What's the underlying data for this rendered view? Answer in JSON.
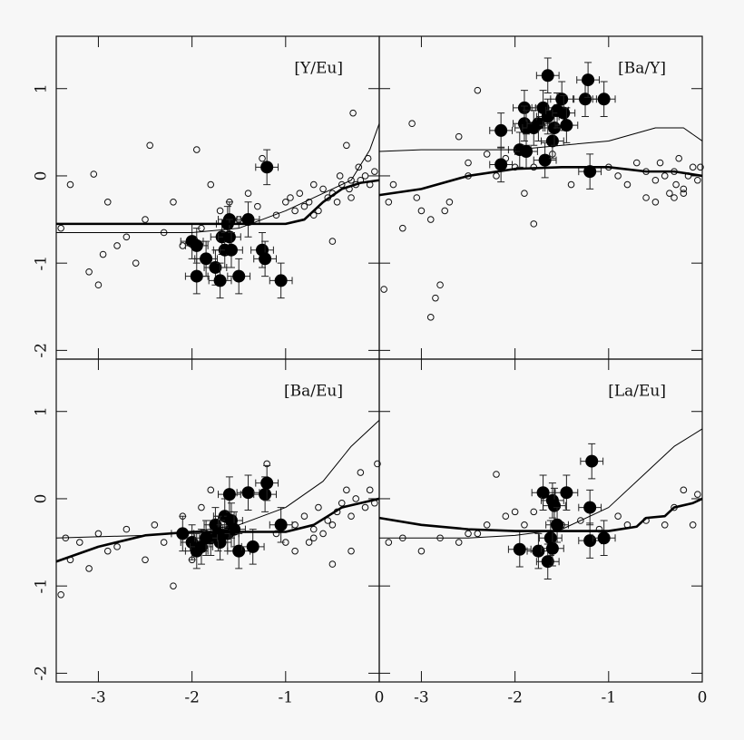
{
  "chart_data": [
    {
      "type": "scatter",
      "label": "[Y/Eu]",
      "xlim": [
        -3.45,
        0
      ],
      "ylim": [
        -2.1,
        1.6
      ],
      "yticks": [
        -2,
        -1,
        0,
        1
      ],
      "series": [
        {
          "kind": "open",
          "color": "#111",
          "x": [
            -3.4,
            -3.3,
            -3.1,
            -3.05,
            -3.0,
            -2.95,
            -2.9,
            -2.8,
            -2.7,
            -2.6,
            -2.5,
            -2.45,
            -2.3,
            -2.2,
            -2.1,
            -1.95,
            -1.9,
            -1.8,
            -1.7,
            -1.6,
            -1.5,
            -1.4,
            -1.3,
            -1.25,
            -1.1,
            -1.0,
            -0.95,
            -0.9,
            -0.85,
            -0.8,
            -0.75,
            -0.7,
            -0.65,
            -0.6,
            -0.55,
            -0.5,
            -0.45,
            -0.42,
            -0.4,
            -0.35,
            -0.32,
            -0.3,
            -0.28,
            -0.25,
            -0.22,
            -0.2,
            -0.15,
            -0.12,
            -0.1,
            -0.05,
            -0.3,
            -0.5,
            -0.7
          ],
          "values": [
            -0.6,
            -0.1,
            -1.1,
            0.02,
            -1.25,
            -0.9,
            -0.3,
            -0.8,
            -0.7,
            -1.0,
            -0.5,
            0.35,
            -0.65,
            -0.3,
            -0.8,
            0.3,
            -0.6,
            -0.1,
            -0.4,
            -0.3,
            -0.5,
            -0.2,
            -0.35,
            0.2,
            -0.45,
            -0.3,
            -0.25,
            -0.4,
            -0.2,
            -0.35,
            -0.3,
            -0.1,
            -0.4,
            -0.15,
            -0.25,
            -0.2,
            -0.3,
            0.0,
            -0.1,
            0.35,
            -0.15,
            -0.05,
            0.72,
            -0.1,
            0.1,
            -0.05,
            0.0,
            0.2,
            -0.1,
            0.05,
            -0.25,
            -0.75,
            -0.45
          ]
        },
        {
          "kind": "filled",
          "color": "#000",
          "xerr": 0.12,
          "yerr": 0.2,
          "x": [
            -2.0,
            -1.95,
            -1.95,
            -1.85,
            -1.75,
            -1.7,
            -1.68,
            -1.65,
            -1.62,
            -1.6,
            -1.6,
            -1.58,
            -1.5,
            -1.4,
            -1.25,
            -1.22,
            -1.2,
            -1.05
          ],
          "values": [
            -0.75,
            -0.8,
            -1.15,
            -0.95,
            -1.05,
            -1.2,
            -0.7,
            -0.85,
            -0.55,
            -0.5,
            -0.7,
            -0.85,
            -1.15,
            -0.5,
            -0.85,
            -0.95,
            0.1,
            -1.2
          ]
        },
        {
          "kind": "line",
          "color": "#000",
          "width": 2.6,
          "x": [
            -3.45,
            -1.8,
            -1.0,
            -0.8,
            -0.6,
            -0.4,
            -0.2,
            0
          ],
          "values": [
            -0.55,
            -0.55,
            -0.55,
            -0.5,
            -0.3,
            -0.15,
            -0.08,
            -0.05
          ]
        },
        {
          "kind": "line",
          "color": "#000",
          "width": 1,
          "x": [
            -3.45,
            -2.0,
            -1.5,
            -1.0,
            -0.6,
            -0.3,
            -0.1,
            0
          ],
          "values": [
            -0.65,
            -0.65,
            -0.6,
            -0.4,
            -0.2,
            -0.05,
            0.3,
            0.6
          ]
        }
      ]
    },
    {
      "type": "scatter",
      "label": "[Ba/Y]",
      "xlim": [
        -3.45,
        0
      ],
      "ylim": [
        -2.1,
        1.6
      ],
      "series": [
        {
          "kind": "open",
          "color": "#111",
          "x": [
            -3.4,
            -3.35,
            -3.3,
            -3.2,
            -3.1,
            -3.0,
            -2.9,
            -2.8,
            -2.7,
            -2.6,
            -2.5,
            -2.4,
            -2.3,
            -2.2,
            -2.1,
            -2.0,
            -1.9,
            -1.8,
            -1.6,
            -1.4,
            -1.2,
            -1.0,
            -0.9,
            -0.8,
            -0.7,
            -0.6,
            -0.5,
            -0.45,
            -0.4,
            -0.35,
            -0.3,
            -0.28,
            -0.25,
            -0.2,
            -0.15,
            -0.1,
            -0.05,
            -0.02,
            -0.3,
            -0.2,
            -0.5,
            -0.6,
            -2.9,
            -2.85,
            -2.75,
            -3.05,
            -2.5,
            -1.8
          ],
          "values": [
            -1.3,
            -0.3,
            -0.1,
            -0.6,
            0.6,
            -0.4,
            -0.5,
            -1.25,
            -0.3,
            0.45,
            0.0,
            0.98,
            0.25,
            0.0,
            0.2,
            0.1,
            -0.2,
            -0.55,
            0.25,
            -0.1,
            0.05,
            0.1,
            0.0,
            -0.1,
            0.15,
            0.05,
            -0.05,
            0.15,
            0.0,
            -0.2,
            0.05,
            -0.1,
            0.2,
            -0.15,
            0.0,
            0.1,
            -0.05,
            0.1,
            -0.25,
            -0.2,
            -0.3,
            -0.25,
            -1.62,
            -1.4,
            -0.4,
            -0.25,
            0.15,
            0.1
          ]
        },
        {
          "kind": "filled",
          "color": "#000",
          "xerr": 0.12,
          "yerr": 0.2,
          "x": [
            -2.15,
            -2.15,
            -1.95,
            -1.9,
            -1.9,
            -1.88,
            -1.88,
            -1.8,
            -1.75,
            -1.7,
            -1.68,
            -1.65,
            -1.65,
            -1.6,
            -1.58,
            -1.55,
            -1.5,
            -1.48,
            -1.45,
            -1.25,
            -1.22,
            -1.2,
            -1.05
          ],
          "values": [
            0.52,
            0.13,
            0.3,
            0.78,
            0.6,
            0.55,
            0.28,
            0.55,
            0.6,
            0.78,
            0.18,
            1.15,
            0.68,
            0.4,
            0.55,
            0.75,
            0.88,
            0.72,
            0.58,
            0.88,
            1.1,
            0.05,
            0.88
          ]
        },
        {
          "kind": "line",
          "color": "#000",
          "width": 2.6,
          "x": [
            -3.45,
            -3.0,
            -2.5,
            -2.0,
            -1.5,
            -1.0,
            -0.6,
            -0.3,
            0
          ],
          "values": [
            -0.22,
            -0.15,
            0.0,
            0.08,
            0.1,
            0.1,
            0.05,
            0.05,
            0.0
          ]
        },
        {
          "kind": "line",
          "color": "#000",
          "width": 1,
          "x": [
            -3.45,
            -3.0,
            -2.0,
            -1.5,
            -1.0,
            -0.5,
            -0.2,
            0
          ],
          "values": [
            0.28,
            0.3,
            0.3,
            0.35,
            0.4,
            0.55,
            0.55,
            0.4
          ]
        }
      ]
    },
    {
      "type": "scatter",
      "label": "[Ba/Eu]",
      "xlim": [
        -3.45,
        0
      ],
      "ylim": [
        -2.1,
        1.6
      ],
      "xticks": [
        -3,
        -2,
        -1,
        0
      ],
      "yticks": [
        -2,
        -1,
        0,
        1
      ],
      "series": [
        {
          "kind": "open",
          "color": "#111",
          "x": [
            -3.4,
            -3.35,
            -3.3,
            -3.2,
            -3.1,
            -3.0,
            -2.9,
            -2.8,
            -2.7,
            -2.5,
            -2.4,
            -2.3,
            -2.2,
            -2.1,
            -2.0,
            -1.9,
            -1.8,
            -1.2,
            -1.1,
            -1.0,
            -0.9,
            -0.8,
            -0.75,
            -0.7,
            -0.65,
            -0.6,
            -0.55,
            -0.5,
            -0.45,
            -0.4,
            -0.35,
            -0.3,
            -0.25,
            -0.2,
            -0.15,
            -0.1,
            -0.05,
            -0.02,
            -0.3,
            -0.5,
            -0.7,
            -0.9
          ],
          "values": [
            -1.1,
            -0.45,
            -0.7,
            -0.5,
            -0.8,
            -0.4,
            -0.6,
            -0.55,
            -0.35,
            -0.7,
            -0.3,
            -0.5,
            -1.0,
            -0.2,
            -0.7,
            -0.1,
            0.1,
            0.4,
            -0.4,
            -0.5,
            -0.3,
            -0.2,
            -0.5,
            -0.35,
            -0.1,
            -0.4,
            -0.25,
            -0.3,
            -0.15,
            -0.05,
            0.1,
            -0.2,
            0.0,
            0.3,
            -0.1,
            0.1,
            -0.05,
            0.4,
            -0.6,
            -0.75,
            -0.45,
            -0.6
          ]
        },
        {
          "kind": "filled",
          "color": "#000",
          "xerr": 0.12,
          "yerr": 0.2,
          "x": [
            -2.1,
            -2.0,
            -1.95,
            -1.9,
            -1.8,
            -1.75,
            -1.7,
            -1.65,
            -1.62,
            -1.6,
            -1.58,
            -1.55,
            -1.5,
            -1.4,
            -1.35,
            -1.22,
            -1.2,
            -1.05,
            -1.72,
            -1.85
          ],
          "values": [
            -0.4,
            -0.5,
            -0.6,
            -0.55,
            -0.45,
            -0.3,
            -0.5,
            -0.2,
            -0.4,
            0.05,
            -0.25,
            -0.35,
            -0.6,
            0.07,
            -0.55,
            0.05,
            0.18,
            -0.3,
            -0.4,
            -0.45
          ]
        },
        {
          "kind": "line",
          "color": "#000",
          "width": 2.6,
          "x": [
            -3.45,
            -3.0,
            -2.5,
            -2.0,
            -1.5,
            -1.0,
            -0.7,
            -0.4,
            -0.2,
            0
          ],
          "values": [
            -0.72,
            -0.55,
            -0.42,
            -0.38,
            -0.38,
            -0.38,
            -0.3,
            -0.1,
            -0.05,
            0.0
          ]
        },
        {
          "kind": "line",
          "color": "#000",
          "width": 1,
          "x": [
            -3.45,
            -2.5,
            -2.0,
            -1.5,
            -1.0,
            -0.6,
            -0.3,
            0
          ],
          "values": [
            -0.45,
            -0.42,
            -0.38,
            -0.3,
            -0.1,
            0.2,
            0.6,
            0.9
          ]
        }
      ]
    },
    {
      "type": "scatter",
      "label": "[La/Eu]",
      "xlim": [
        -3.45,
        0
      ],
      "ylim": [
        -2.1,
        1.6
      ],
      "xticks": [
        -3,
        -2,
        -1,
        0
      ],
      "series": [
        {
          "kind": "open",
          "color": "#111",
          "x": [
            -3.35,
            -3.2,
            -3.0,
            -2.8,
            -2.6,
            -2.4,
            -2.2,
            -2.1,
            -2.0,
            -1.9,
            -1.8,
            -1.5,
            -1.3,
            -1.1,
            -0.9,
            -0.8,
            -0.6,
            -0.4,
            -0.3,
            -0.2,
            -0.1,
            -0.05,
            -2.5,
            -2.3
          ],
          "values": [
            -0.5,
            -0.45,
            -0.6,
            -0.45,
            -0.5,
            -0.4,
            0.28,
            -0.2,
            -0.15,
            -0.3,
            -0.15,
            -0.3,
            -0.25,
            -0.35,
            -0.2,
            -0.3,
            -0.25,
            -0.3,
            -0.1,
            0.1,
            -0.3,
            0.05,
            -0.4,
            -0.3
          ]
        },
        {
          "kind": "filled",
          "color": "#000",
          "xerr": 0.12,
          "yerr": 0.2,
          "x": [
            -1.95,
            -1.75,
            -1.7,
            -1.65,
            -1.62,
            -1.6,
            -1.58,
            -1.6,
            -1.55,
            -1.45,
            -1.2,
            -1.2,
            -1.18,
            -1.05
          ],
          "values": [
            -0.58,
            -0.6,
            0.07,
            -0.72,
            -0.45,
            -0.02,
            -0.08,
            -0.57,
            -0.3,
            0.07,
            -0.1,
            -0.48,
            0.43,
            -0.45
          ]
        },
        {
          "kind": "line",
          "color": "#000",
          "width": 2.6,
          "x": [
            -3.45,
            -3.0,
            -2.5,
            -2.0,
            -1.5,
            -1.0,
            -0.7,
            -0.6,
            -0.4,
            -0.3,
            -0.1,
            0
          ],
          "values": [
            -0.22,
            -0.3,
            -0.35,
            -0.37,
            -0.37,
            -0.37,
            -0.32,
            -0.22,
            -0.2,
            -0.1,
            -0.05,
            0.0
          ]
        },
        {
          "kind": "line",
          "color": "#000",
          "width": 1,
          "x": [
            -3.45,
            -2.5,
            -2.0,
            -1.5,
            -1.0,
            -0.6,
            -0.3,
            0
          ],
          "values": [
            -0.45,
            -0.45,
            -0.42,
            -0.35,
            -0.1,
            0.3,
            0.6,
            0.8
          ]
        }
      ]
    }
  ]
}
